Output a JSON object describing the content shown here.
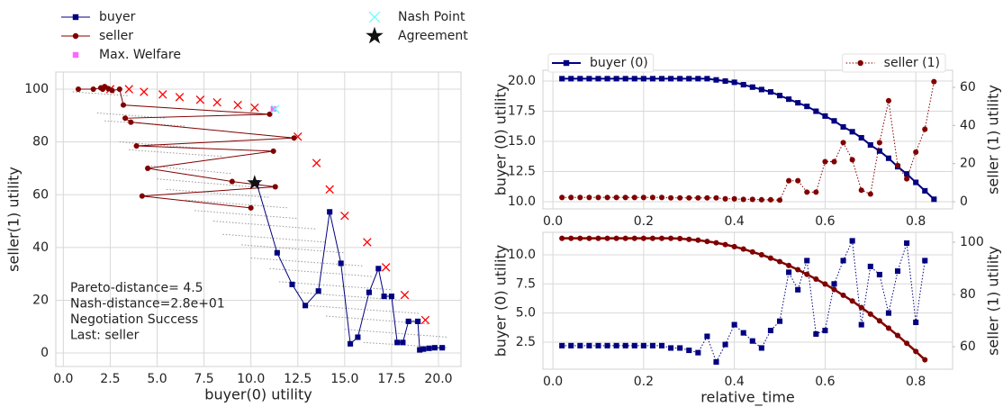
{
  "chart_data": [
    {
      "type": "line",
      "xlabel": "buyer(0) utility",
      "ylabel": "seller(1) utility",
      "xlim": [
        -0.4,
        21.2
      ],
      "ylim": [
        -5.1,
        106.5
      ],
      "xticks": [
        {
          "value": 0,
          "label": "0.0"
        },
        2.5,
        {
          "value": 5,
          "label": "5.0"
        },
        7.5,
        {
          "value": 10,
          "label": "10.0"
        },
        12.5,
        {
          "value": 15,
          "label": "15.0"
        },
        17.5,
        {
          "value": 20,
          "label": "20.0"
        }
      ],
      "yticks": [
        0,
        20,
        40,
        60,
        80,
        100
      ],
      "grid": true,
      "legend": "above",
      "annotations": [
        "Pareto-distance=  4.5",
        "Nash-distance=2.8e+01",
        "Negotiation Success",
        "Last: seller"
      ],
      "series": [
        {
          "color": "#999999",
          "linestyle": "dotted",
          "marker": "none",
          "x": [
            0.5,
            3.5
          ],
          "values": [
            99,
            97.5
          ]
        },
        {
          "color": "#999999",
          "linestyle": "dotted",
          "marker": "none",
          "x": [
            1.8,
            5.5
          ],
          "values": [
            91,
            89
          ]
        },
        {
          "color": "#999999",
          "linestyle": "dotted",
          "marker": "none",
          "x": [
            2.2,
            6.5
          ],
          "values": [
            88,
            86
          ]
        },
        {
          "color": "#999999",
          "linestyle": "dotted",
          "marker": "none",
          "x": [
            3,
            7.5
          ],
          "values": [
            80,
            77.5
          ]
        },
        {
          "color": "#999999",
          "linestyle": "dotted",
          "marker": "none",
          "x": [
            3.5,
            8.5
          ],
          "values": [
            77,
            74.5
          ]
        },
        {
          "color": "#999999",
          "linestyle": "dotted",
          "marker": "none",
          "x": [
            4.5,
            9
          ],
          "values": [
            71,
            68
          ]
        },
        {
          "color": "#999999",
          "linestyle": "dotted",
          "marker": "none",
          "x": [
            5,
            10
          ],
          "values": [
            66,
            63
          ]
        },
        {
          "color": "#999999",
          "linestyle": "dotted",
          "marker": "none",
          "x": [
            5.5,
            11
          ],
          "values": [
            62,
            59
          ]
        },
        {
          "color": "#999999",
          "linestyle": "dotted",
          "marker": "none",
          "x": [
            6.5,
            12
          ],
          "values": [
            58,
            55
          ]
        },
        {
          "color": "#999999",
          "linestyle": "dotted",
          "marker": "none",
          "x": [
            7,
            12.5
          ],
          "values": [
            54,
            51
          ]
        },
        {
          "color": "#999999",
          "linestyle": "dotted",
          "marker": "none",
          "x": [
            8,
            13.5
          ],
          "values": [
            50,
            47
          ]
        },
        {
          "color": "#999999",
          "linestyle": "dotted",
          "marker": "none",
          "x": [
            8.5,
            14
          ],
          "values": [
            45,
            42
          ]
        },
        {
          "color": "#999999",
          "linestyle": "dotted",
          "marker": "none",
          "x": [
            9.5,
            15
          ],
          "values": [
            41,
            38
          ]
        },
        {
          "color": "#999999",
          "linestyle": "dotted",
          "marker": "none",
          "x": [
            10,
            16
          ],
          "values": [
            36,
            33
          ]
        },
        {
          "color": "#999999",
          "linestyle": "dotted",
          "marker": "none",
          "x": [
            11,
            16.5
          ],
          "values": [
            32,
            29
          ]
        },
        {
          "color": "#999999",
          "linestyle": "dotted",
          "marker": "none",
          "x": [
            11.5,
            17.5
          ],
          "values": [
            27,
            24
          ]
        },
        {
          "color": "#999999",
          "linestyle": "dotted",
          "marker": "none",
          "x": [
            12.5,
            18
          ],
          "values": [
            23,
            20
          ]
        },
        {
          "color": "#999999",
          "linestyle": "dotted",
          "marker": "none",
          "x": [
            13,
            19
          ],
          "values": [
            18,
            15
          ]
        },
        {
          "color": "#999999",
          "linestyle": "dotted",
          "marker": "none",
          "x": [
            14,
            19.5
          ],
          "values": [
            14,
            11
          ]
        },
        {
          "color": "#999999",
          "linestyle": "dotted",
          "marker": "none",
          "x": [
            15,
            20.5
          ],
          "values": [
            9,
            6
          ]
        },
        {
          "color": "#999999",
          "linestyle": "dotted",
          "marker": "none",
          "x": [
            16,
            20.5
          ],
          "values": [
            4,
            2
          ]
        },
        {
          "color": "#ff0000",
          "linestyle": "none",
          "marker": "x",
          "x": [
            2.5,
            3.5,
            4.3,
            5.3,
            6.2,
            7.3,
            8.2,
            9.3,
            10.2,
            12.5,
            13.5,
            14.2,
            15,
            16.2,
            17.2,
            18.2,
            19.3
          ],
          "values": [
            100,
            100,
            99,
            98,
            97,
            96,
            95,
            94,
            93,
            82,
            72,
            62,
            52,
            42,
            32.5,
            22,
            12.5
          ]
        },
        {
          "name": "buyer",
          "color": "#000080",
          "linestyle": "solid",
          "marker": "square",
          "x": [
            20.2,
            19.8,
            19.5,
            19.2,
            19,
            18.9,
            18.4,
            18.1,
            17.8,
            17.5,
            17.1,
            16.8,
            16.3,
            15.7,
            15.3,
            14.8,
            14.2,
            13.6,
            12.9,
            12.2,
            11.4,
            10.3
          ],
          "values": [
            2,
            2,
            1.8,
            1.5,
            1.2,
            12,
            12,
            4,
            4,
            21.5,
            21.5,
            32,
            23,
            6,
            3.5,
            34,
            53.5,
            23.5,
            18,
            26,
            38,
            64.5
          ]
        },
        {
          "name": "seller",
          "color": "#800000",
          "linestyle": "solid",
          "marker": "circle",
          "x": [
            0.8,
            1.6,
            2,
            2.2,
            2.1,
            2.4,
            2.6,
            3,
            3.2,
            11,
            3.3,
            3.6,
            12.3,
            3.9,
            11.2,
            4.5,
            9,
            11.3,
            4.2,
            10
          ],
          "values": [
            100,
            100,
            100.5,
            101,
            100,
            100.2,
            99.5,
            100,
            94,
            90.5,
            89,
            87.5,
            81.5,
            78.5,
            76.5,
            70,
            65,
            63,
            59.5,
            55
          ]
        },
        {
          "name": "Max. Welfare",
          "color": "#ff66ff",
          "linestyle": "none",
          "marker": "square",
          "x": [
            11.2
          ],
          "values": [
            92.5
          ]
        },
        {
          "name": "Nash Point",
          "color": "#66ffff",
          "linestyle": "none",
          "marker": "x",
          "x": [
            11.3
          ],
          "values": [
            92.5
          ]
        },
        {
          "name": "Agreement",
          "color": "#111111",
          "linestyle": "none",
          "marker": "star",
          "x": [
            10.2
          ],
          "values": [
            64.5
          ]
        }
      ]
    },
    {
      "type": "line",
      "ylabel": "buyer (0) utility",
      "y2label": "seller (1) utility",
      "xlim": [
        -0.022,
        0.881
      ],
      "ylim": [
        9.4,
        20.9
      ],
      "y2lim": [
        -3.8,
        69
      ],
      "grid": true,
      "xticks": [
        {
          "value": 0,
          "label": "0.0"
        },
        0.2,
        0.4,
        0.6,
        0.8
      ],
      "yticks": [
        {
          "value": 10,
          "label": "10.0"
        },
        12.5,
        {
          "value": 15,
          "label": "15.0"
        },
        17.5,
        {
          "value": 20,
          "label": "20.0"
        }
      ],
      "y2ticks": [
        0,
        20,
        40,
        60
      ],
      "x": [
        0.02,
        0.04,
        0.06,
        0.08,
        0.1,
        0.12,
        0.14,
        0.16,
        0.18,
        0.2,
        0.22,
        0.24,
        0.26,
        0.28,
        0.3,
        0.32,
        0.34,
        0.36,
        0.38,
        0.4,
        0.42,
        0.44,
        0.46,
        0.48,
        0.5,
        0.52,
        0.54,
        0.56,
        0.58,
        0.6,
        0.62,
        0.64,
        0.66,
        0.68,
        0.7,
        0.72,
        0.74,
        0.76,
        0.78,
        0.8,
        0.82,
        0.84
      ],
      "series": [
        {
          "name": "buyer (0)",
          "legend": "upper left",
          "color": "#000080",
          "linestyle": "solid",
          "linewidth": 2,
          "marker": "square",
          "values": [
            20.2,
            20.2,
            20.2,
            20.2,
            20.2,
            20.2,
            20.2,
            20.2,
            20.2,
            20.2,
            20.2,
            20.2,
            20.2,
            20.2,
            20.2,
            20.2,
            20.2,
            20.1,
            20.0,
            19.9,
            19.7,
            19.5,
            19.3,
            19.1,
            18.8,
            18.5,
            18.2,
            17.9,
            17.5,
            17.1,
            16.7,
            16.2,
            15.8,
            15.3,
            14.7,
            14.2,
            13.6,
            12.9,
            12.3,
            11.6,
            10.9,
            10.2
          ]
        },
        {
          "name": "seller (1)",
          "legend": "upper right",
          "axis": "y2",
          "color": "#800000",
          "linestyle": "dotted",
          "linewidth": 1,
          "marker": "circle",
          "values": [
            2.2,
            2.2,
            2.2,
            2.2,
            2.2,
            2.2,
            2.2,
            2.2,
            2.2,
            2.2,
            2.2,
            2.2,
            2.0,
            2.0,
            2.0,
            2.0,
            2.0,
            2.0,
            1.5,
            1.5,
            1.2,
            1.2,
            1.0,
            1.0,
            0.8,
            11,
            11,
            5,
            5,
            21,
            21,
            31,
            22,
            6,
            4,
            31,
            53,
            19,
            12,
            26,
            38,
            63
          ]
        }
      ]
    },
    {
      "type": "line",
      "xlabel": "relative_time",
      "ylabel": "buyer (0) utility",
      "y2label": "seller (1) utility",
      "xlim": [
        -0.022,
        0.881
      ],
      "ylim": [
        0.18,
        11.93
      ],
      "y2lim": [
        51.4,
        103.8
      ],
      "grid": true,
      "xticks": [
        {
          "value": 0,
          "label": "0.0"
        },
        0.2,
        0.4,
        0.6,
        0.8
      ],
      "yticks": [
        2.5,
        {
          "value": 5,
          "label": "5.0"
        },
        7.5,
        {
          "value": 10,
          "label": "10.0"
        }
      ],
      "y2ticks": [
        60,
        80,
        100
      ],
      "x": [
        0.02,
        0.04,
        0.06,
        0.08,
        0.1,
        0.12,
        0.14,
        0.16,
        0.18,
        0.2,
        0.22,
        0.24,
        0.26,
        0.28,
        0.3,
        0.32,
        0.34,
        0.36,
        0.38,
        0.4,
        0.42,
        0.44,
        0.46,
        0.48,
        0.5,
        0.52,
        0.54,
        0.56,
        0.58,
        0.6,
        0.62,
        0.64,
        0.66,
        0.68,
        0.7,
        0.72,
        0.74,
        0.76,
        0.78,
        0.8,
        0.82
      ],
      "series": [
        {
          "color": "#000080",
          "linestyle": "dotted",
          "linewidth": 1,
          "marker": "square",
          "values": [
            2.2,
            2.2,
            2.2,
            2.2,
            2.2,
            2.2,
            2.2,
            2.2,
            2.2,
            2.2,
            2.2,
            2.2,
            2.0,
            2.0,
            1.8,
            1.6,
            3.0,
            0.8,
            2.3,
            4.0,
            3.3,
            2.6,
            2.0,
            3.5,
            4.3,
            8.5,
            7.0,
            9.5,
            3.2,
            3.5,
            7.5,
            9.5,
            11.2,
            4.0,
            9.0,
            8.3,
            5.0,
            8.6,
            11.0,
            4.2,
            9.5
          ]
        },
        {
          "axis": "y2",
          "color": "#800000",
          "linestyle": "solid",
          "linewidth": 2.5,
          "marker": "circle",
          "values": [
            101.5,
            101.5,
            101.5,
            101.5,
            101.5,
            101.5,
            101.5,
            101.5,
            101.5,
            101.5,
            101.5,
            101.5,
            101.5,
            101.4,
            101.1,
            100.8,
            100.3,
            99.8,
            99.1,
            98.3,
            97.4,
            96.3,
            95.2,
            93.9,
            92.6,
            91.1,
            89.5,
            87.7,
            85.9,
            84.0,
            81.9,
            79.7,
            77.5,
            75.0,
            72.5,
            69.9,
            67.1,
            64.3,
            61.3,
            58.2,
            55.0
          ]
        }
      ]
    }
  ]
}
